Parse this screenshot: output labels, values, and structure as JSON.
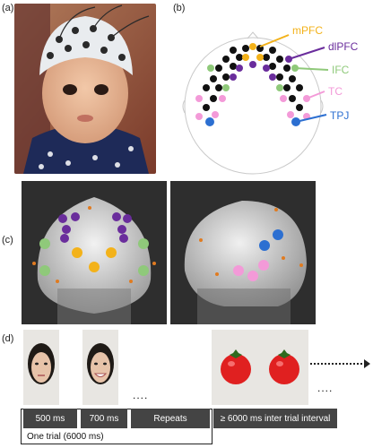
{
  "panels": {
    "a": "(a)",
    "b": "(b)",
    "c": "(c)",
    "d": "(d)"
  },
  "regions": [
    {
      "label": "mPFC",
      "color": "#f3b21a"
    },
    {
      "label": "dlPFC",
      "color": "#6a2d9c"
    },
    {
      "label": "IFC",
      "color": "#8fc97a"
    },
    {
      "label": "TC",
      "color": "#f39ad8"
    },
    {
      "label": "TPJ",
      "color": "#2c6fd1"
    }
  ],
  "timeline": {
    "boxes": [
      "500 ms",
      "700 ms",
      "Repeats",
      "≥ 6000 ms inter trial interval"
    ],
    "trial_label": "One trial (6000 ms)",
    "ellipsis": "...."
  }
}
